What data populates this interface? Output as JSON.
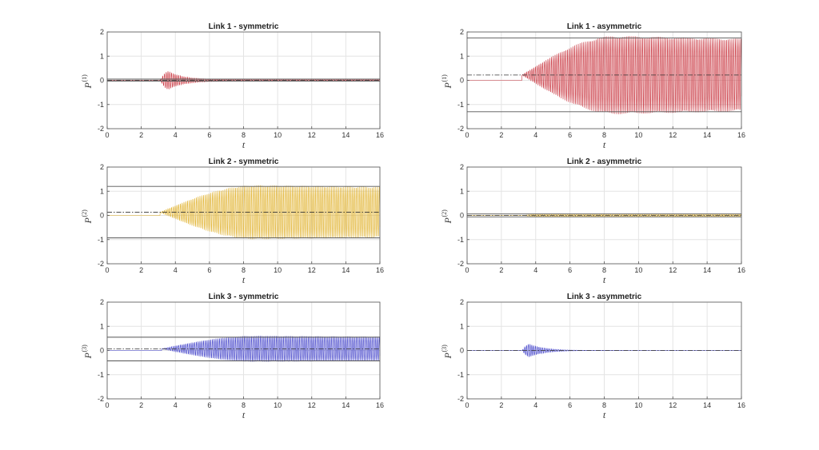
{
  "chart_data": [
    {
      "type": "line",
      "title": "Link 1 - symmetric",
      "xlabel": "t",
      "ylabel": "P",
      "ylabel_superscript": "(1)",
      "xlim": [
        0,
        16
      ],
      "ylim": [
        -2,
        2
      ],
      "xticks": [
        0,
        2,
        4,
        6,
        8,
        10,
        12,
        14,
        16
      ],
      "yticks": [
        -2,
        -1,
        0,
        1,
        2
      ],
      "grid": true,
      "color": "#c8323c",
      "signal": {
        "onset": 3.1,
        "peak_time": 3.6,
        "peak_amplitude": 0.38,
        "final_amplitude": 0.03,
        "mean": 0.0
      },
      "reference_lines": [
        0.05,
        -0.03
      ],
      "dashdot_level": 0.0
    },
    {
      "type": "line",
      "title": "Link 1 - asymmetric",
      "xlabel": "t",
      "ylabel": "P",
      "ylabel_superscript": "(1)",
      "xlim": [
        0,
        16
      ],
      "ylim": [
        -2,
        2
      ],
      "xticks": [
        0,
        2,
        4,
        6,
        8,
        10,
        12,
        14,
        16
      ],
      "yticks": [
        -2,
        -1,
        0,
        1,
        2
      ],
      "grid": true,
      "color": "#c8323c",
      "signal": {
        "onset": 3.2,
        "peak_time": 8.8,
        "peak_amplitude": 1.62,
        "final_amplitude": 1.5,
        "mean": 0.22
      },
      "reference_lines": [
        1.75,
        -1.3
      ],
      "dashdot_level": 0.22
    },
    {
      "type": "line",
      "title": "Link 2 - symmetric",
      "xlabel": "t",
      "ylabel": "P",
      "ylabel_superscript": "(2)",
      "xlim": [
        0,
        16
      ],
      "ylim": [
        -2,
        2
      ],
      "xticks": [
        0,
        2,
        4,
        6,
        8,
        10,
        12,
        14,
        16
      ],
      "yticks": [
        -2,
        -1,
        0,
        1,
        2
      ],
      "grid": true,
      "color": "#e0b028",
      "signal": {
        "onset": 3.1,
        "peak_time": 8.8,
        "peak_amplitude": 1.12,
        "final_amplitude": 1.05,
        "mean": 0.13
      },
      "reference_lines": [
        1.2,
        -0.93
      ],
      "dashdot_level": 0.13
    },
    {
      "type": "line",
      "title": "Link 2 - asymmetric",
      "xlabel": "t",
      "ylabel": "P",
      "ylabel_superscript": "(2)",
      "xlim": [
        0,
        16
      ],
      "ylim": [
        -2,
        2
      ],
      "xticks": [
        0,
        2,
        4,
        6,
        8,
        10,
        12,
        14,
        16
      ],
      "yticks": [
        -2,
        -1,
        0,
        1,
        2
      ],
      "grid": true,
      "color": "#e0b028",
      "signal": {
        "onset": 3.3,
        "peak_time": 4.0,
        "peak_amplitude": 0.05,
        "final_amplitude": 0.05,
        "mean": 0.0
      },
      "reference_lines": [
        0.06,
        -0.06
      ],
      "dashdot_level": 0.0
    },
    {
      "type": "line",
      "title": "Link 3 - symmetric",
      "xlabel": "t",
      "ylabel": "P",
      "ylabel_superscript": "(3)",
      "xlim": [
        0,
        16
      ],
      "ylim": [
        -2,
        2
      ],
      "xticks": [
        0,
        2,
        4,
        6,
        8,
        10,
        12,
        14,
        16
      ],
      "yticks": [
        -2,
        -1,
        0,
        1,
        2
      ],
      "grid": true,
      "color": "#3c3cc8",
      "signal": {
        "onset": 3.2,
        "peak_time": 8.8,
        "peak_amplitude": 0.54,
        "final_amplitude": 0.5,
        "mean": 0.07
      },
      "reference_lines": [
        0.55,
        -0.43
      ],
      "dashdot_level": 0.07
    },
    {
      "type": "line",
      "title": "Link 3 - asymmetric",
      "xlabel": "t",
      "ylabel": "P",
      "ylabel_superscript": "(3)",
      "xlim": [
        0,
        16
      ],
      "ylim": [
        -2,
        2
      ],
      "xticks": [
        0,
        2,
        4,
        6,
        8,
        10,
        12,
        14,
        16
      ],
      "yticks": [
        -2,
        -1,
        0,
        1,
        2
      ],
      "grid": true,
      "color": "#3c3cc8",
      "signal": {
        "onset": 3.2,
        "peak_time": 3.65,
        "peak_amplitude": 0.27,
        "final_amplitude": 0.0,
        "mean": 0.0
      },
      "reference_lines": [],
      "dashdot_level": 0.0
    }
  ]
}
